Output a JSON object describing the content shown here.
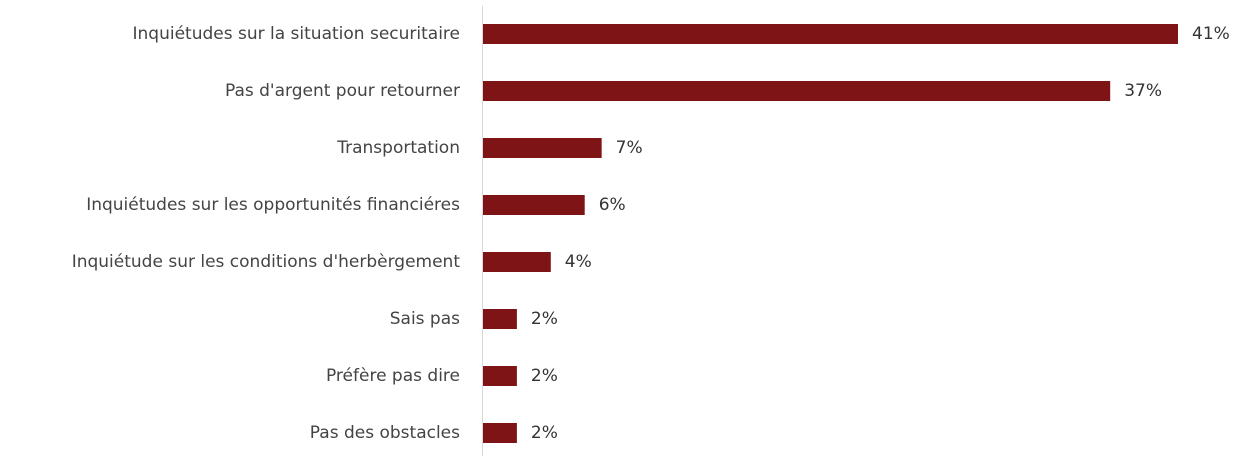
{
  "chart_data": {
    "type": "bar",
    "orientation": "horizontal",
    "categories": [
      "Inquiétudes sur la situation securitaire",
      "Pas d'argent pour retourner",
      "Transportation",
      "Inquiétudes sur les opportunités financiéres",
      "Inquiétude sur les conditions d'herbèrgement",
      "Sais pas",
      "Préfère pas dire",
      "Pas des obstacles"
    ],
    "values": [
      41,
      37,
      7,
      6,
      4,
      2,
      2,
      2
    ],
    "value_labels": [
      "41%",
      "37%",
      "7%",
      "6%",
      "4%",
      "2%",
      "2%",
      "2%"
    ],
    "unit": "%",
    "xlim": [
      0,
      41
    ],
    "grid": false,
    "legend": "none",
    "bar_color": "#7f1416"
  }
}
